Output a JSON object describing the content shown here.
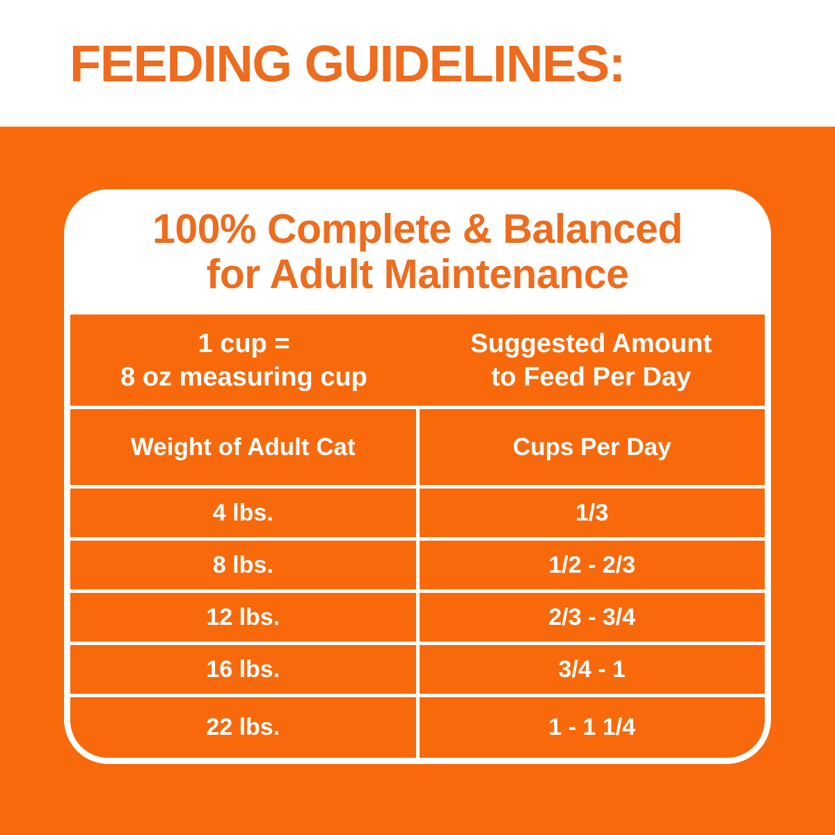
{
  "header": {
    "title": "FEEDING GUIDELINES:"
  },
  "card": {
    "title_line1": "100% Complete & Balanced",
    "title_line2": "for Adult Maintenance",
    "header_band": {
      "left_line1": "1 cup =",
      "left_line2": "8 oz measuring cup",
      "right_line1": "Suggested Amount",
      "right_line2": "to Feed Per Day"
    },
    "table": {
      "columns": [
        "Weight of Adult Cat",
        "Cups Per Day"
      ],
      "rows": [
        {
          "weight": "4 lbs.",
          "cups": "1/3"
        },
        {
          "weight": "8 lbs.",
          "cups": "1/2 - 2/3"
        },
        {
          "weight": "12 lbs.",
          "cups": "2/3 - 3/4"
        },
        {
          "weight": "16 lbs.",
          "cups": "3/4 - 1"
        },
        {
          "weight": "22 lbs.",
          "cups": "1 - 1 1/4"
        }
      ]
    }
  },
  "colors": {
    "brand_orange": "#F8690B",
    "heading_orange": "#ED6C1E",
    "table_text": "#FFFFFF",
    "card_background": "#FFFFFF"
  },
  "chart_data": {
    "type": "table",
    "section_label": "FEEDING GUIDELINES:",
    "title": "100% Complete & Balanced for Adult Maintenance",
    "cup_definition": "1 cup = 8 oz measuring cup",
    "suggested_amount_label": "Suggested Amount to Feed Per Day",
    "columns": [
      "Weight of Adult Cat",
      "Cups Per Day"
    ],
    "rows": [
      [
        "4 lbs.",
        "1/3"
      ],
      [
        "8 lbs.",
        "1/2 - 2/3"
      ],
      [
        "12 lbs.",
        "2/3 - 3/4"
      ],
      [
        "16 lbs.",
        "3/4 - 1"
      ],
      [
        "22 lbs.",
        "1 - 1 1/4"
      ]
    ]
  }
}
